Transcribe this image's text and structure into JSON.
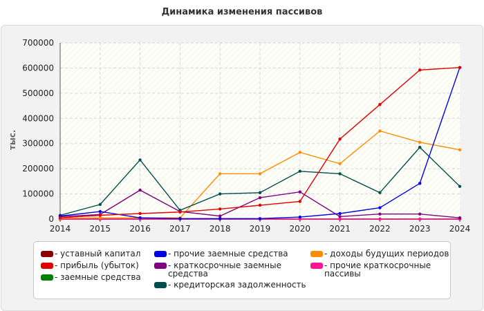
{
  "chart_data": {
    "type": "line",
    "title": "Динамика изменения пассивов",
    "ylabel": "тыс.",
    "xlabel": "",
    "x": [
      "2014",
      "2015",
      "2016",
      "2017",
      "2018",
      "2019",
      "2020",
      "2021",
      "2022",
      "2023",
      "2024"
    ],
    "ylim": [
      0,
      700000
    ],
    "yticks": [
      "0",
      "100000",
      "200000",
      "300000",
      "400000",
      "500000",
      "600000",
      "700000"
    ],
    "series": [
      {
        "name": "- уставный капитал",
        "color": "#8b0000",
        "values": [
          0,
          0,
          0,
          0,
          0,
          0,
          0,
          0,
          0,
          0,
          0
        ]
      },
      {
        "name": "- прибыль (убыток)",
        "color": "#e00000",
        "values": [
          5000,
          15000,
          22000,
          28000,
          40000,
          55000,
          70000,
          318000,
          455000,
          592000,
          602000
        ]
      },
      {
        "name": "- заемные средства",
        "color": "#008000",
        "values": [
          0,
          0,
          0,
          0,
          0,
          0,
          0,
          0,
          0,
          0,
          0
        ]
      },
      {
        "name": "- прочие заемные средства",
        "color": "#0000e0",
        "values": [
          12000,
          30000,
          5000,
          2000,
          2000,
          2000,
          8000,
          22000,
          45000,
          142000,
          602000
        ]
      },
      {
        "name": "- краткосрочные заемные средства",
        "color": "#800080",
        "values": [
          10000,
          18000,
          115000,
          30000,
          12000,
          85000,
          108000,
          10000,
          20000,
          20000,
          5000
        ]
      },
      {
        "name": "- кредиторская задолженность",
        "color": "#004d4d",
        "values": [
          15000,
          58000,
          235000,
          35000,
          100000,
          105000,
          190000,
          180000,
          105000,
          285000,
          130000
        ]
      },
      {
        "name": "- доходы будущих периодов",
        "color": "#ff8c00",
        "values": [
          3000,
          5000,
          5000,
          5000,
          180000,
          180000,
          265000,
          220000,
          350000,
          305000,
          275000
        ]
      },
      {
        "name": "- прочие краткосрочные пассивы",
        "color": "#ff1493",
        "values": [
          0,
          0,
          0,
          0,
          0,
          0,
          0,
          0,
          0,
          0,
          0
        ]
      }
    ]
  }
}
